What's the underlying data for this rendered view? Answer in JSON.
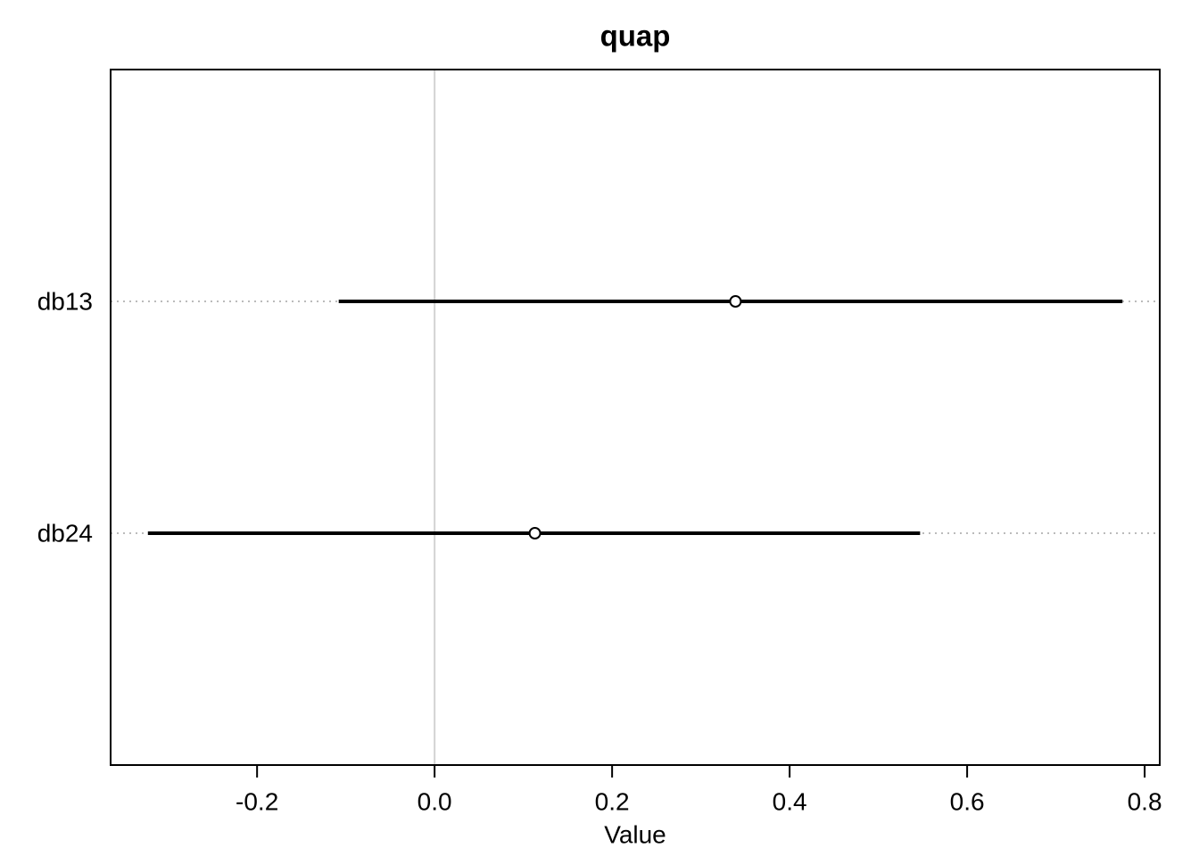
{
  "chart_data": {
    "type": "interval",
    "title": "quap",
    "x_label": "Value",
    "categories": [
      "db13",
      "db24"
    ],
    "values": [
      0.339,
      0.113
    ],
    "lower": [
      -0.108,
      -0.323
    ],
    "upper": [
      0.775,
      0.547
    ],
    "color": "#000000",
    "xlim": [
      -0.365,
      0.817
    ],
    "xticks": [
      {
        "value": -0.2,
        "label": "-0.2"
      },
      {
        "value": 0,
        "label": "0.0"
      },
      0.2,
      0.4,
      0.6,
      0.8
    ],
    "reference_line": 0
  }
}
